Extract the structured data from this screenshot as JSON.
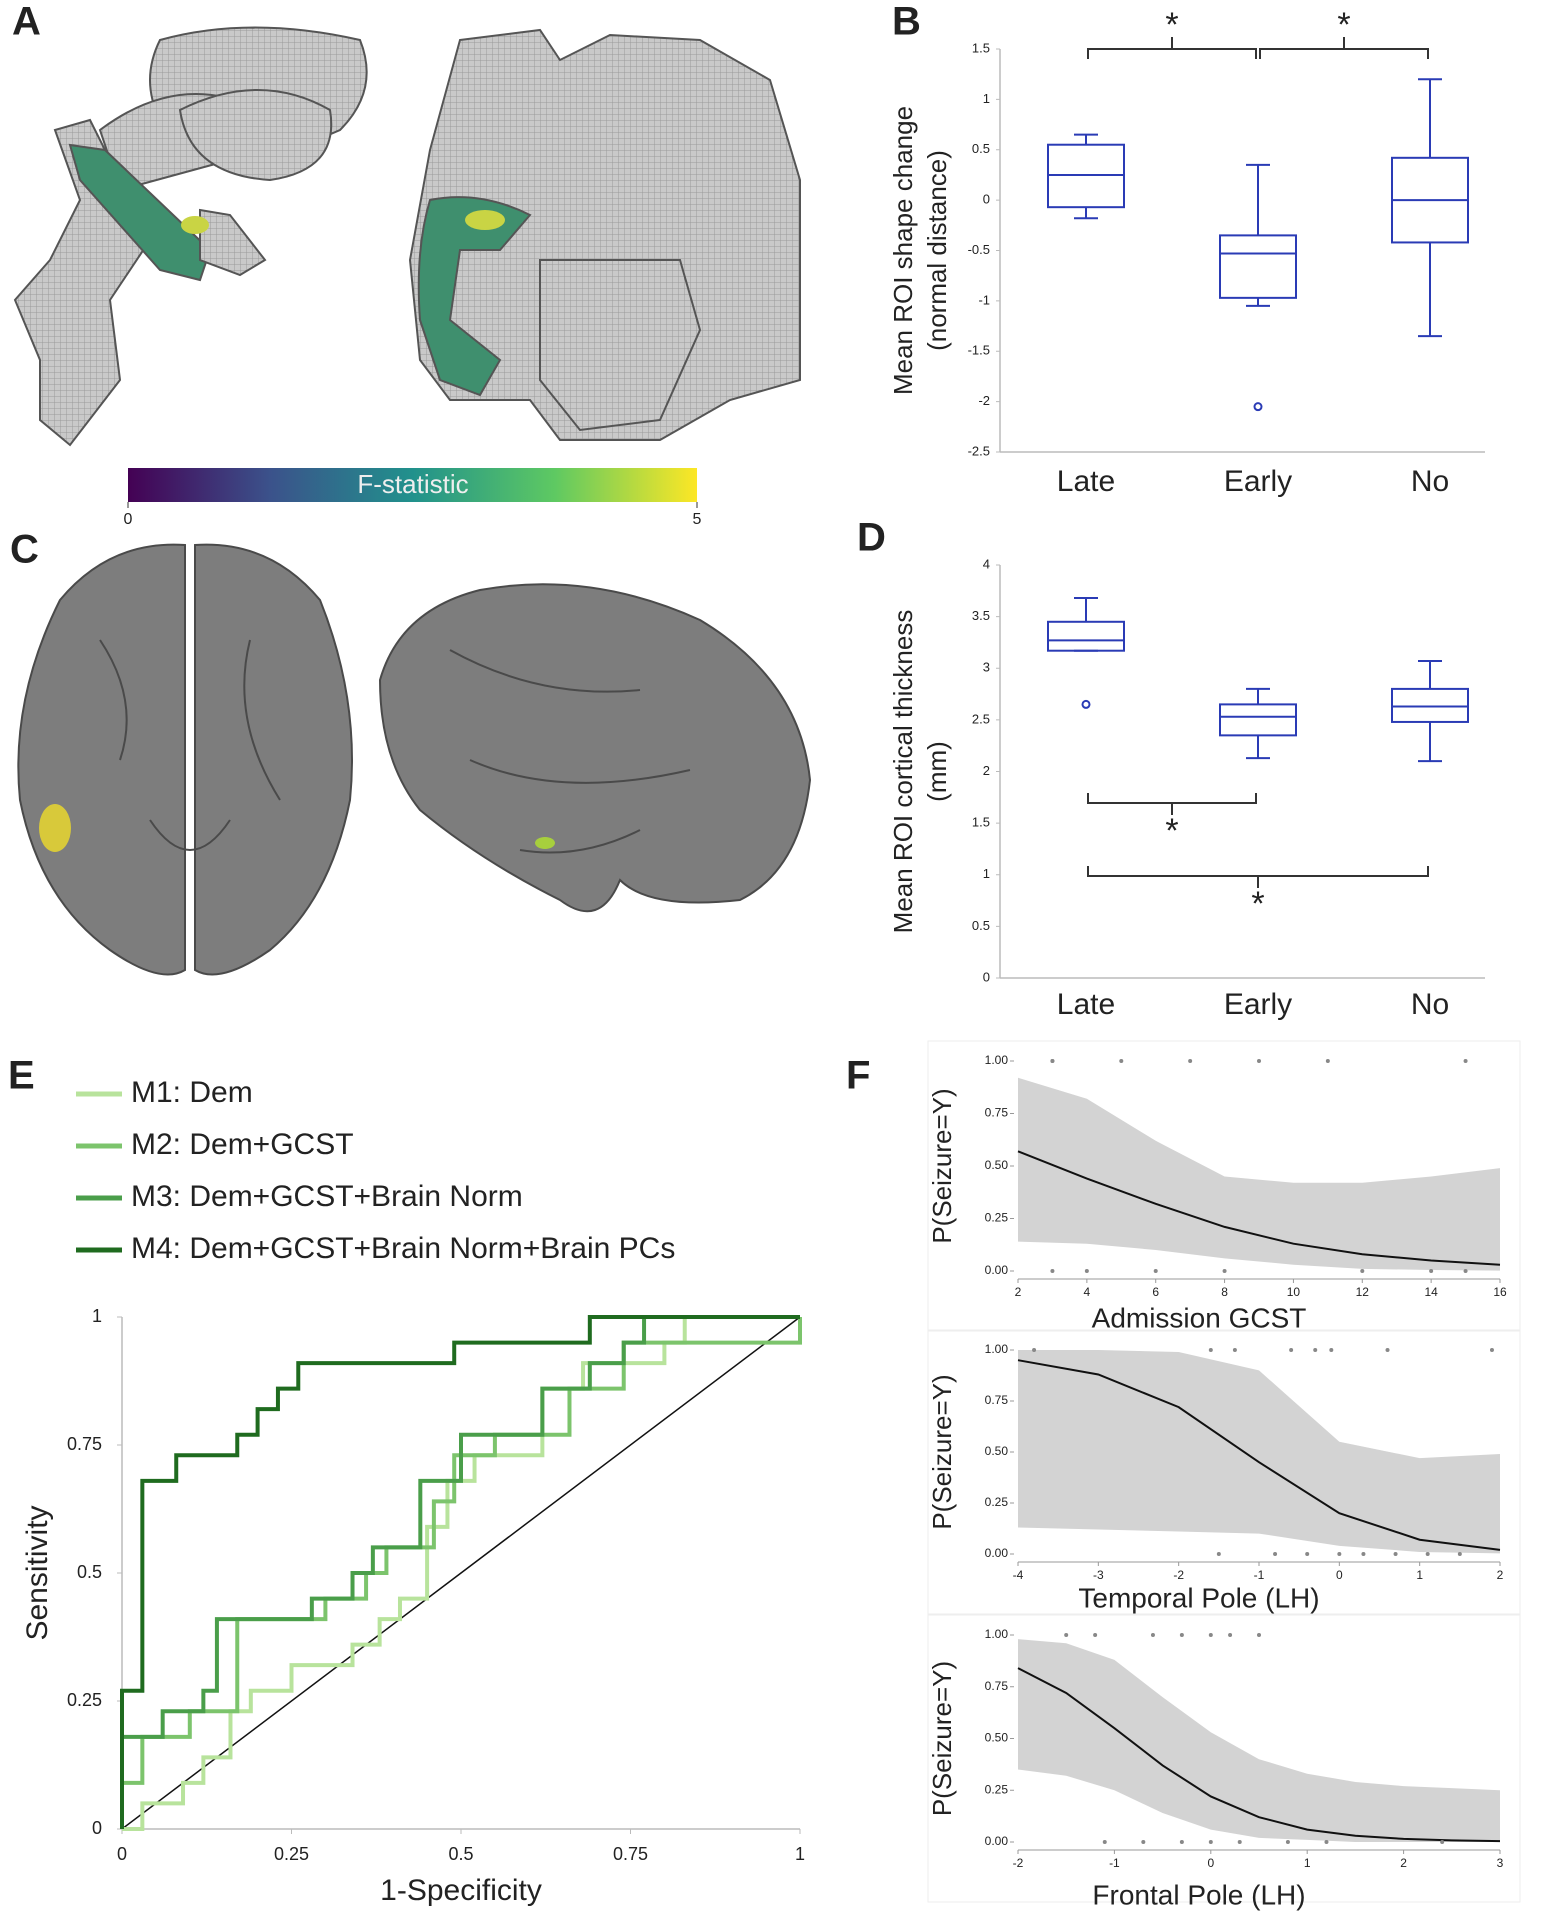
{
  "panels": {
    "A": "A",
    "B": "B",
    "C": "C",
    "D": "D",
    "E": "E",
    "F": "F"
  },
  "colorbar": {
    "label": "F-statistic",
    "lim": [
      0,
      5
    ],
    "ticks": [
      0,
      5
    ]
  },
  "chart_data": [
    {
      "type": "box",
      "ylabel": [
        "Mean ROI shape change",
        "(normal distance)"
      ],
      "categories": [
        "Late",
        "Early",
        "No"
      ],
      "color": "#2a3bb5",
      "ylim": [
        -2.5,
        1.5
      ],
      "yticks": [
        -2.5,
        -2,
        -1.5,
        -1,
        -0.5,
        0,
        0.5,
        1,
        1.5
      ],
      "boxes": [
        {
          "min": -0.18,
          "q1": -0.07,
          "median": 0.25,
          "q3": 0.55,
          "max": 0.65,
          "outliers": []
        },
        {
          "min": -1.05,
          "q1": -0.97,
          "median": -0.53,
          "q3": -0.35,
          "max": 0.35,
          "outliers": [
            -2.05
          ]
        },
        {
          "min": -1.35,
          "q1": -0.42,
          "median": 0,
          "q3": 0.42,
          "max": 1.2,
          "outliers": []
        }
      ],
      "significance_position": "top",
      "significance": [
        {
          "groups": [
            "Late",
            "Early"
          ],
          "label": "*"
        },
        {
          "groups": [
            "Early",
            "No"
          ],
          "label": "*"
        }
      ]
    },
    {
      "type": "box",
      "ylabel": [
        "Mean ROI cortical thickness",
        "(mm)"
      ],
      "categories": [
        "Late",
        "Early",
        "No"
      ],
      "color": "#2a3bb5",
      "ylim": [
        0,
        4
      ],
      "yticks": [
        0,
        0.5,
        1,
        1.5,
        2,
        2.5,
        3,
        3.5,
        4
      ],
      "boxes": [
        {
          "min": 3.17,
          "q1": 3.17,
          "median": 3.27,
          "q3": 3.45,
          "max": 3.68,
          "outliers": [
            2.65
          ]
        },
        {
          "min": 2.13,
          "q1": 2.35,
          "median": 2.53,
          "q3": 2.65,
          "max": 2.8,
          "outliers": []
        },
        {
          "min": 2.1,
          "q1": 2.48,
          "median": 2.63,
          "q3": 2.8,
          "max": 3.07,
          "outliers": []
        }
      ],
      "significance_position": "bottom",
      "significance": [
        {
          "groups": [
            "Late",
            "Early"
          ],
          "label": "*"
        },
        {
          "groups": [
            "Late",
            "No"
          ],
          "label": "*"
        }
      ]
    },
    {
      "type": "roc",
      "xlabel": "1-Specificity",
      "ylabel": "Sensitivity",
      "xlim": [
        0,
        1
      ],
      "ylim": [
        0,
        1
      ],
      "xticks": [
        0,
        0.25,
        0.5,
        0.75,
        1
      ],
      "yticks": [
        0,
        0.25,
        0.5,
        0.75,
        1
      ],
      "series": [
        {
          "name": "M1: Dem",
          "color": "#b8e39c",
          "x": [
            0,
            0.03,
            0.03,
            0.09,
            0.09,
            0.12,
            0.12,
            0.16,
            0.16,
            0.19,
            0.19,
            0.25,
            0.25,
            0.34,
            0.34,
            0.38,
            0.38,
            0.41,
            0.41,
            0.45,
            0.45,
            0.48,
            0.48,
            0.52,
            0.52,
            0.62,
            0.62,
            0.68,
            0.68,
            0.8,
            0.8,
            0.83,
            0.83,
            1
          ],
          "values": [
            0,
            0,
            0.05,
            0.05,
            0.09,
            0.09,
            0.14,
            0.14,
            0.23,
            0.23,
            0.27,
            0.27,
            0.32,
            0.32,
            0.36,
            0.36,
            0.41,
            0.41,
            0.45,
            0.45,
            0.59,
            0.59,
            0.68,
            0.68,
            0.73,
            0.73,
            0.86,
            0.86,
            0.91,
            0.91,
            0.95,
            0.95,
            1,
            1
          ]
        },
        {
          "name": "M2: Dem+GCST",
          "color": "#7cc46c",
          "x": [
            0,
            0,
            0.03,
            0.03,
            0.1,
            0.1,
            0.17,
            0.17,
            0.3,
            0.3,
            0.36,
            0.36,
            0.39,
            0.39,
            0.46,
            0.46,
            0.49,
            0.49,
            0.55,
            0.55,
            0.66,
            0.66,
            0.74,
            0.74,
            1,
            1
          ],
          "values": [
            0,
            0.09,
            0.09,
            0.18,
            0.18,
            0.23,
            0.23,
            0.41,
            0.41,
            0.45,
            0.45,
            0.5,
            0.5,
            0.55,
            0.55,
            0.64,
            0.64,
            0.73,
            0.73,
            0.77,
            0.77,
            0.86,
            0.86,
            0.95,
            0.95,
            1
          ]
        },
        {
          "name": "M3: Dem+GCST+Brain Norm",
          "color": "#4a9e4a",
          "x": [
            0,
            0,
            0.06,
            0.06,
            0.12,
            0.12,
            0.14,
            0.14,
            0.28,
            0.28,
            0.34,
            0.34,
            0.37,
            0.37,
            0.44,
            0.44,
            0.5,
            0.5,
            0.62,
            0.62,
            0.69,
            0.69,
            0.74,
            0.74,
            0.77,
            0.77,
            1
          ],
          "values": [
            0,
            0.18,
            0.18,
            0.23,
            0.23,
            0.27,
            0.27,
            0.41,
            0.41,
            0.45,
            0.45,
            0.5,
            0.5,
            0.55,
            0.55,
            0.68,
            0.68,
            0.77,
            0.77,
            0.86,
            0.86,
            0.91,
            0.91,
            0.95,
            0.95,
            1,
            1
          ]
        },
        {
          "name": "M4: Dem+GCST+Brain Norm+Brain PCs",
          "color": "#1f6b1f",
          "x": [
            0,
            0,
            0.03,
            0.03,
            0.08,
            0.08,
            0.17,
            0.17,
            0.2,
            0.2,
            0.23,
            0.23,
            0.26,
            0.26,
            0.49,
            0.49,
            0.69,
            0.69,
            1
          ],
          "values": [
            0,
            0.27,
            0.27,
            0.68,
            0.68,
            0.73,
            0.73,
            0.77,
            0.77,
            0.82,
            0.82,
            0.86,
            0.86,
            0.91,
            0.91,
            0.95,
            0.95,
            1,
            1
          ]
        }
      ]
    },
    {
      "type": "logistic",
      "xlabel": "Admission GCST",
      "ylabel": "P(Seizure=Y)",
      "xlim": [
        2,
        16
      ],
      "xticks": [
        2,
        4,
        6,
        8,
        10,
        12,
        14,
        16
      ],
      "ylim": [
        0,
        1
      ],
      "yticks": [
        {
          "value": 0,
          "label": "0.00"
        },
        {
          "value": 0.25,
          "label": "0.25"
        },
        {
          "value": 0.5,
          "label": "0.50"
        },
        {
          "value": 0.75,
          "label": "0.75"
        },
        {
          "value": 1,
          "label": "1.00"
        }
      ],
      "x": [
        2,
        4,
        6,
        8,
        10,
        12,
        14,
        16
      ],
      "values": [
        0.57,
        0.44,
        0.32,
        0.21,
        0.13,
        0.08,
        0.05,
        0.03
      ],
      "lower": [
        0.14,
        0.13,
        0.1,
        0.06,
        0.03,
        0.01,
        0.005,
        0.002
      ],
      "upper": [
        0.92,
        0.82,
        0.62,
        0.45,
        0.42,
        0.42,
        0.45,
        0.49
      ],
      "points": {
        "x": [
          3,
          3,
          5,
          7,
          9,
          11,
          15,
          3,
          4,
          6,
          8,
          12,
          14,
          15
        ],
        "y": [
          1,
          1,
          1,
          1,
          1,
          1,
          1,
          0,
          0,
          0,
          0,
          0,
          0,
          0
        ]
      }
    },
    {
      "type": "logistic",
      "xlabel": "Temporal Pole (LH)",
      "ylabel": "P(Seizure=Y)",
      "xlim": [
        -4,
        2
      ],
      "xticks": [
        -4,
        -3,
        -2,
        -1,
        0,
        1,
        2
      ],
      "ylim": [
        0,
        1
      ],
      "yticks": [
        {
          "value": 0,
          "label": "0.00"
        },
        {
          "value": 0.25,
          "label": "0.25"
        },
        {
          "value": 0.5,
          "label": "0.50"
        },
        {
          "value": 0.75,
          "label": "0.75"
        },
        {
          "value": 1,
          "label": "1.00"
        }
      ],
      "x": [
        -4,
        -3,
        -2,
        -1,
        0,
        1,
        2
      ],
      "values": [
        0.95,
        0.88,
        0.72,
        0.45,
        0.2,
        0.07,
        0.02
      ],
      "lower": [
        0.13,
        0.12,
        0.11,
        0.1,
        0.04,
        0.01,
        0.003
      ],
      "upper": [
        1,
        1,
        0.99,
        0.9,
        0.55,
        0.47,
        0.49
      ],
      "points": {
        "x": [
          -3.8,
          -1.6,
          -1.3,
          -0.6,
          -0.3,
          -0.1,
          0.6,
          1.9,
          -1.5,
          -0.8,
          -0.4,
          0,
          0.3,
          0.7,
          1.1,
          1.5
        ],
        "y": [
          1,
          1,
          1,
          1,
          1,
          1,
          1,
          1,
          0,
          0,
          0,
          0,
          0,
          0,
          0,
          0
        ]
      }
    },
    {
      "type": "logistic",
      "xlabel": "Frontal Pole (LH)",
      "ylabel": "P(Seizure=Y)",
      "xlim": [
        -2,
        3
      ],
      "xticks": [
        -2,
        -1,
        0,
        1,
        2,
        3
      ],
      "ylim": [
        0,
        1
      ],
      "yticks": [
        {
          "value": 0,
          "label": "0.00"
        },
        {
          "value": 0.25,
          "label": "0.25"
        },
        {
          "value": 0.5,
          "label": "0.50"
        },
        {
          "value": 0.75,
          "label": "0.75"
        },
        {
          "value": 1,
          "label": "1.00"
        }
      ],
      "x": [
        -2,
        -1.5,
        -1,
        -0.5,
        0,
        0.5,
        1,
        1.5,
        2,
        2.5,
        3
      ],
      "values": [
        0.84,
        0.72,
        0.55,
        0.37,
        0.22,
        0.12,
        0.06,
        0.03,
        0.015,
        0.008,
        0.004
      ],
      "lower": [
        0.35,
        0.32,
        0.25,
        0.14,
        0.06,
        0.02,
        0.01,
        0,
        0,
        0,
        0
      ],
      "upper": [
        0.98,
        0.96,
        0.88,
        0.7,
        0.53,
        0.4,
        0.33,
        0.29,
        0.27,
        0.26,
        0.25
      ],
      "points": {
        "x": [
          -1.5,
          -1.2,
          -0.6,
          -0.3,
          0,
          0.2,
          0.5,
          -1.1,
          -0.7,
          -0.3,
          0,
          0.3,
          0.8,
          1.2,
          2.4
        ],
        "y": [
          1,
          1,
          1,
          1,
          1,
          1,
          1,
          0,
          0,
          0,
          0,
          0,
          0,
          0,
          0
        ]
      }
    }
  ]
}
